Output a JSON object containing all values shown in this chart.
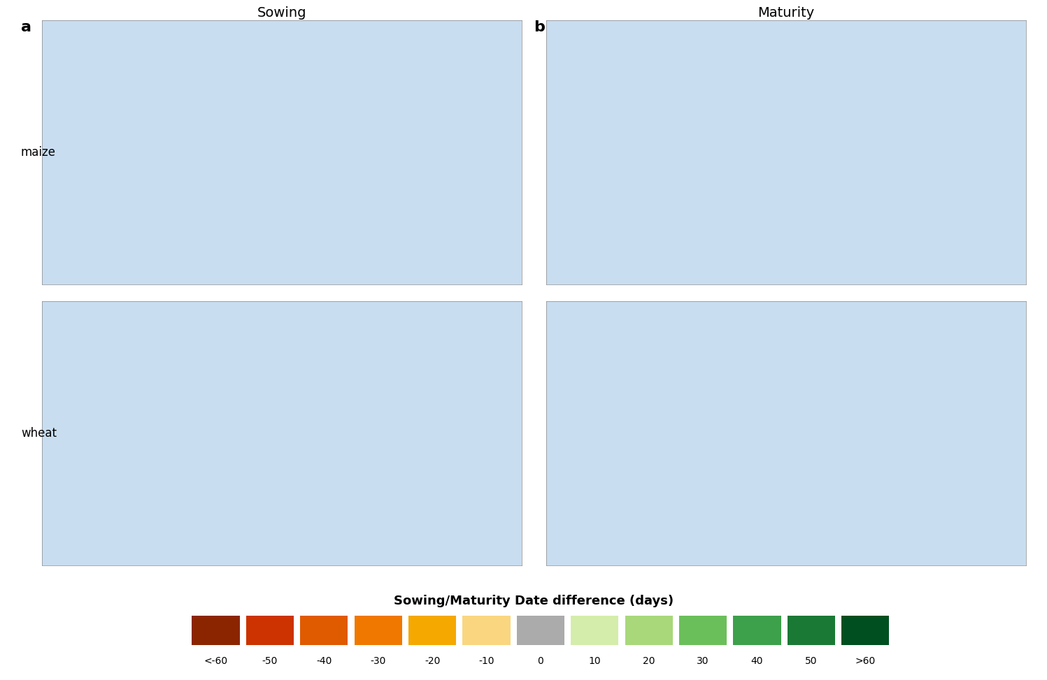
{
  "title_a": "Sowing",
  "title_b": "Maturity",
  "label_a": "a",
  "label_b": "b",
  "row_labels": [
    "maize",
    "wheat"
  ],
  "legend_title": "Sowing/Maturity Date difference (days)",
  "legend_labels": [
    "<-60",
    "-50",
    "-40",
    "-30",
    "-20",
    "-10",
    "0",
    "10",
    "20",
    "30",
    "40",
    "50",
    ">60"
  ],
  "legend_colors": [
    "#8B2500",
    "#CC3300",
    "#E05A00",
    "#F07800",
    "#F5A800",
    "#FAD680",
    "#ABABAB",
    "#D4EDAA",
    "#A8D87A",
    "#6BBF5A",
    "#3DA04A",
    "#1A7A35",
    "#004F20"
  ],
  "ocean_color": "#C8DDF0",
  "land_color": "#FFFFFF",
  "border_color": "#AAAAAA",
  "background_color": "#FFFFFF",
  "fig_width": 14.97,
  "fig_height": 9.73
}
